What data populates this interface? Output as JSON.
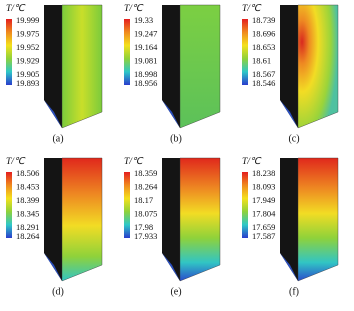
{
  "panels": [
    {
      "label": "(a)",
      "legend_title": "T/℃",
      "legend_labels": [
        "19.999",
        "19.975",
        "19.952",
        "19.929",
        "19.905",
        "19.893"
      ]
    },
    {
      "label": "(b)",
      "legend_title": "T/℃",
      "legend_labels": [
        "19.33",
        "19.247",
        "19.164",
        "19.081",
        "18.998",
        "18.956"
      ]
    },
    {
      "label": "(c)",
      "legend_title": "T/℃",
      "legend_labels": [
        "18.739",
        "18.696",
        "18.653",
        "18.61",
        "18.567",
        "18.546"
      ]
    },
    {
      "label": "(d)",
      "legend_title": "T/℃",
      "legend_labels": [
        "18.506",
        "18.453",
        "18.399",
        "18.345",
        "18.291",
        "18.264"
      ]
    },
    {
      "label": "(e)",
      "legend_title": "T/℃",
      "legend_labels": [
        "18.359",
        "18.264",
        "18.17",
        "18.075",
        "17.98",
        "17.933"
      ]
    },
    {
      "label": "(f)",
      "legend_title": "T/℃",
      "legend_labels": [
        "18.238",
        "18.093",
        "17.949",
        "17.804",
        "17.659",
        "17.587"
      ]
    }
  ]
}
